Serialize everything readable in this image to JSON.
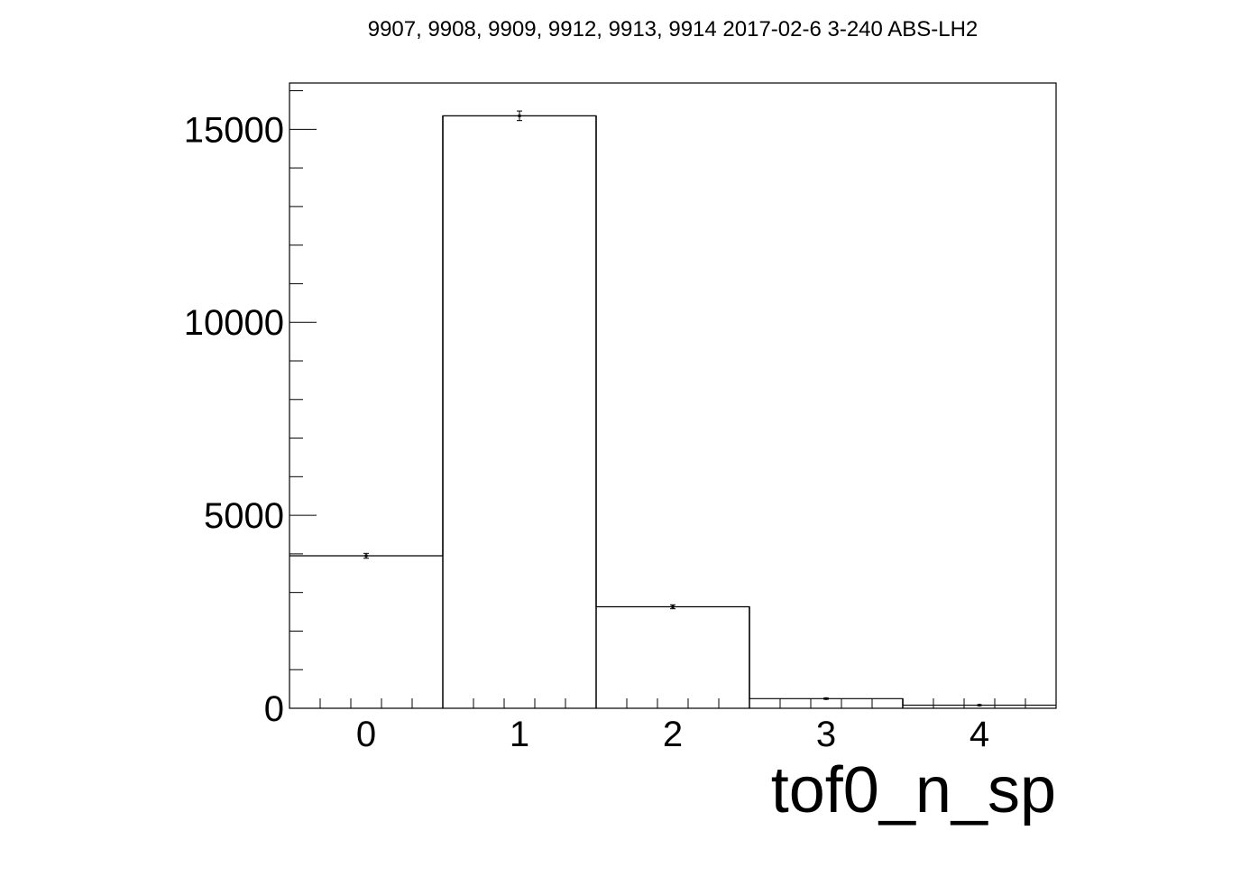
{
  "chart_data": {
    "type": "bar",
    "style": "step-histogram-with-error-bars",
    "title": "9907, 9908, 9909, 9912, 9913, 9914 2017-02-6 3-240 ABS-LH2",
    "xlabel": "tof0_n_sp",
    "ylabel": "",
    "xlim": [
      -0.5,
      4.5
    ],
    "ylim": [
      0,
      16200
    ],
    "x_ticks": [
      0,
      1,
      2,
      3,
      4
    ],
    "y_ticks": [
      0,
      5000,
      10000,
      15000
    ],
    "x_tick_labels": [
      "0",
      "1",
      "2",
      "3",
      "4"
    ],
    "y_tick_labels": [
      "0",
      "5000",
      "10000",
      "15000"
    ],
    "categories": [
      0,
      1,
      2,
      3,
      4
    ],
    "values": [
      3950,
      15350,
      2630,
      250,
      80
    ],
    "errors": [
      63,
      124,
      51,
      16,
      9
    ],
    "grid": false,
    "line_color": "#000000",
    "background": "#ffffff"
  }
}
